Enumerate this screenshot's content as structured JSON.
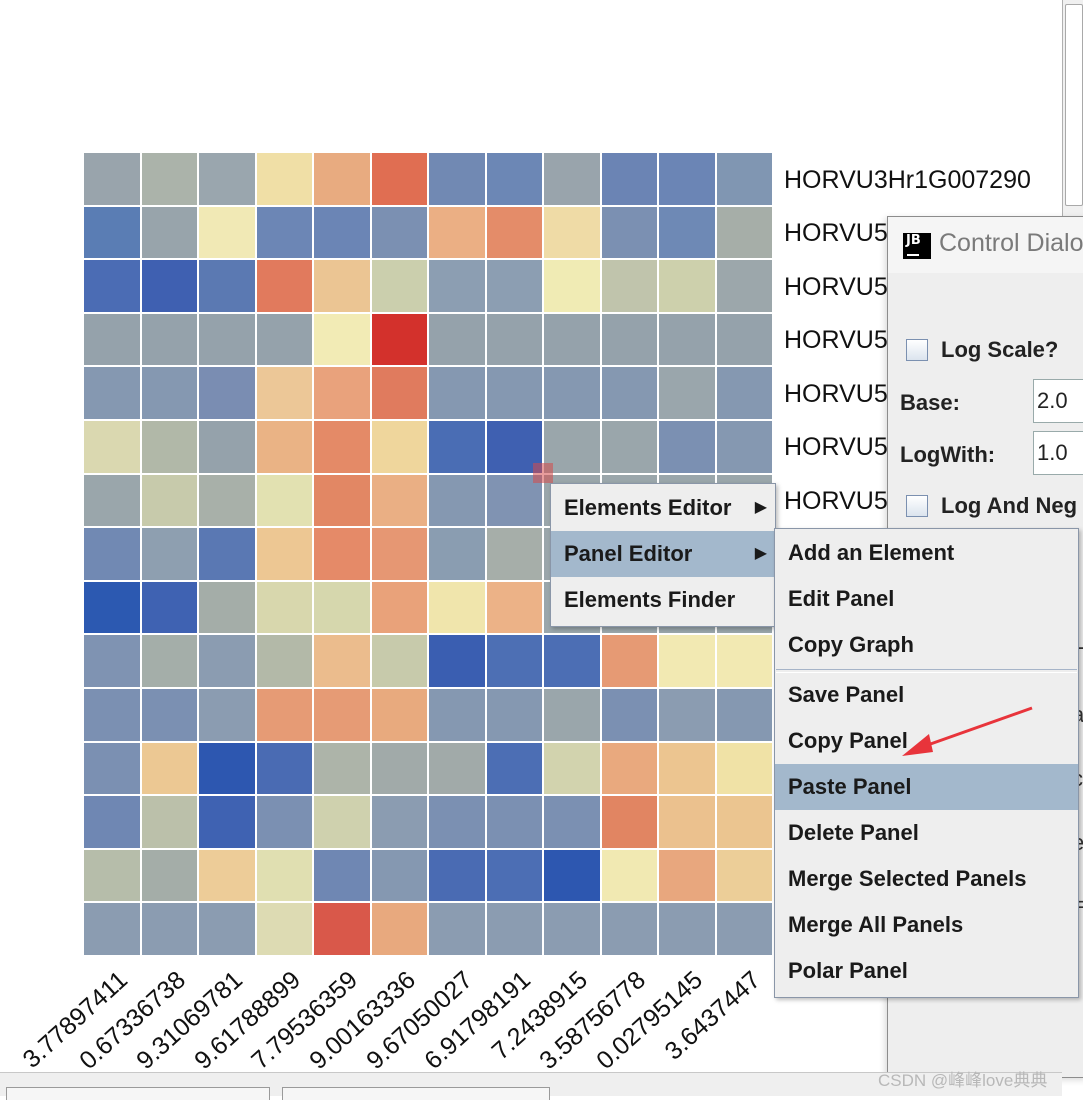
{
  "heatmap": {
    "colors": [
      [
        "#99a4ac",
        "#abb3aa",
        "#9aa6ae",
        "#f0dfa6",
        "#e8ab80",
        "#e06e52",
        "#7189b3",
        "#6c87b5",
        "#99a4ac",
        "#6b84b4",
        "#6b85b5",
        "#8096b2"
      ],
      [
        "#5a7db4",
        "#98a4ab",
        "#f1e9b5",
        "#6c86b5",
        "#6b85b5",
        "#7b90b2",
        "#ebaf84",
        "#e48c69",
        "#efdba6",
        "#7b90b2",
        "#6e89b5",
        "#a6aea8"
      ],
      [
        "#4b6cb4",
        "#3f60b1",
        "#5b79b2",
        "#e17a5d",
        "#ebc593",
        "#cbcfad",
        "#8c9eb2",
        "#8c9eb2",
        "#f0ebb4",
        "#c0c4ac",
        "#cdd0ac",
        "#9ca7ab"
      ],
      [
        "#95a2ab",
        "#95a2ab",
        "#95a2ab",
        "#95a2ab",
        "#f2ebb5",
        "#d3312c",
        "#95a2ab",
        "#95a2ab",
        "#95a2ab",
        "#95a2ab",
        "#95a2ab",
        "#95a2ab"
      ],
      [
        "#8598b1",
        "#8598b1",
        "#7a8db2",
        "#ecc797",
        "#e9a27c",
        "#e07b5e",
        "#8598b1",
        "#8598b1",
        "#8598b1",
        "#8598b1",
        "#9aa6ac",
        "#8598b1"
      ],
      [
        "#dad8b0",
        "#b1b8a8",
        "#95a2ab",
        "#eab385",
        "#e48a67",
        "#efd69c",
        "#4a6db4",
        "#3f60b1",
        "#9aa6ab",
        "#9aa6ab",
        "#7b90b2",
        "#8598b1"
      ],
      [
        "#9aa6ab",
        "#c7caab",
        "#a8b0a9",
        "#e2e1b1",
        "#e28764",
        "#eaaf84",
        "#8598b1",
        "#8093b2",
        "#9aa6ab",
        "#9aa6ab",
        "#9aa6ab",
        "#9aa6ab"
      ],
      [
        "#7189b3",
        "#8e9fb0",
        "#5a78b3",
        "#edc793",
        "#e58a68",
        "#e69773",
        "#8a9db1",
        "#a6aea9",
        "#9aa6ab",
        "#9aa6ab",
        "#9aa6ab",
        "#9aa6ab"
      ],
      [
        "#2c59b1",
        "#3f62b2",
        "#a4ada8",
        "#d8d7ad",
        "#d6d7ad",
        "#e9a27a",
        "#f0e5ac",
        "#ecb287",
        "#9aa6ab",
        "#9aa6ab",
        "#9aa6ab",
        "#9aa6ab"
      ],
      [
        "#7f93b2",
        "#a4aea9",
        "#8b9cb1",
        "#b3b9a8",
        "#ebbc8d",
        "#c7caab",
        "#3a5eb1",
        "#4d6fb4",
        "#4c6eb4",
        "#e69a74",
        "#f2e9b2",
        "#f2e9b2"
      ],
      [
        "#7b90b2",
        "#7b90b2",
        "#8b9cb1",
        "#e69b75",
        "#e69b75",
        "#e8aa7e",
        "#8598b1",
        "#8598b1",
        "#9aa6ab",
        "#7b90b2",
        "#8b9cb1",
        "#8598b1"
      ],
      [
        "#7b90b2",
        "#ecc893",
        "#2d57b0",
        "#4a6bb3",
        "#adb4a9",
        "#a1aaa9",
        "#a1aaa9",
        "#4c6eb4",
        "#d2d3ae",
        "#e9a97e",
        "#ecc590",
        "#f0e2a6"
      ],
      [
        "#6f87b3",
        "#bbc0aa",
        "#3f62b2",
        "#7b90b2",
        "#cfd1ae",
        "#8b9cb1",
        "#7b90b2",
        "#7b90b2",
        "#7b90b2",
        "#e18562",
        "#ebc18e",
        "#ebc590"
      ],
      [
        "#b6bdaa",
        "#a4ada8",
        "#edcc98",
        "#e0dfb1",
        "#6f87b3",
        "#8598b1",
        "#4a6bb3",
        "#4c6eb4",
        "#2d57b0",
        "#f1e9b2",
        "#e8a77e",
        "#ecce98"
      ],
      [
        "#8b9cb1",
        "#8b9cb1",
        "#8b9cb1",
        "#dddbb3",
        "#d9584a",
        "#e8a97e",
        "#8b9cb1",
        "#8b9cb1",
        "#8b9cb1",
        "#8b9cb1",
        "#8b9cb1",
        "#8b9cb1"
      ]
    ],
    "row_labels": [
      "HORVU3Hr1G007290",
      "HORVU5",
      "HORVU5",
      "HORVU5",
      "HORVU5",
      "HORVU5",
      "HORVU5"
    ],
    "col_labels": [
      "3.77897411",
      "0.67336738",
      "9.31069781",
      "9.61788899",
      "7.79536359",
      "9.00163336",
      "9.67050027",
      "6.91798191",
      "7.2438915",
      "3.58756778",
      "0.02795145",
      "3.6437447"
    ]
  },
  "dialog": {
    "title": "Control Dialo",
    "log_scale_label": "Log Scale?",
    "base_label": "Base:",
    "base_value": "2.0",
    "logwith_label": "LogWith:",
    "logwith_value": "1.0",
    "log_and_neg_label": "Log And Neg",
    "edge_glyphs": [
      "H",
      "a",
      "c",
      "e",
      "="
    ]
  },
  "context_menu": {
    "items": [
      {
        "label": "Elements Editor",
        "has_submenu": true
      },
      {
        "label": "Panel Editor",
        "has_submenu": true,
        "active": true
      },
      {
        "label": "Elements Finder",
        "has_submenu": false
      }
    ]
  },
  "submenu": {
    "group1": [
      "Add an Element",
      "Edit Panel",
      "Copy Graph"
    ],
    "group2": [
      "Save Panel",
      "Copy Panel",
      "Paste Panel",
      "Delete Panel",
      "Merge Selected Panels",
      "Merge All Panels",
      "Polar Panel"
    ],
    "highlighted": "Paste Panel"
  },
  "annotation": {
    "arrow_color": "#e8343b"
  },
  "watermark": "CSDN @峰峰love典典"
}
